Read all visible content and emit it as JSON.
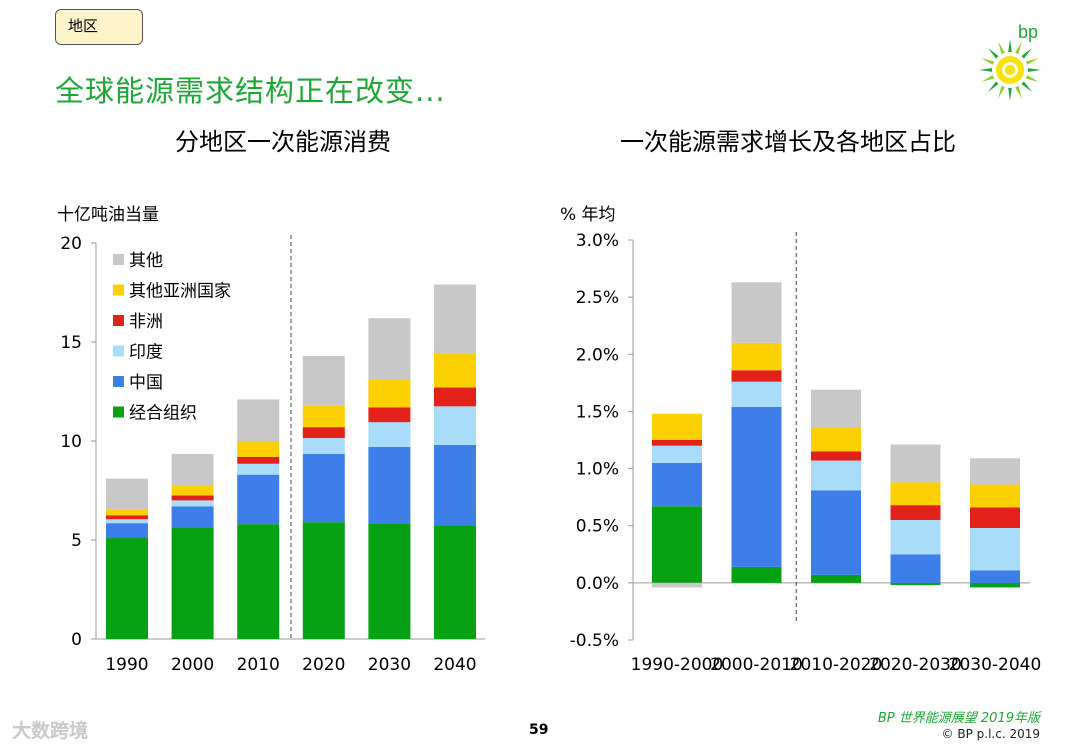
{
  "header": {
    "section_tag": "地区",
    "title": "全球能源需求结构正在改变..."
  },
  "logo": {
    "text": "bp",
    "icon": "helios-sun-icon",
    "accent": "#1fa637",
    "sun_color": "#f8e20a"
  },
  "colors": {
    "oecd": "#06a213",
    "china": "#3e7ee8",
    "india": "#a9dcf9",
    "africa": "#e3211b",
    "other_asia": "#fdd003",
    "other": "#c8c8c8"
  },
  "legend": {
    "items": [
      "其他",
      "其他亚洲国家",
      "非洲",
      "印度",
      "中国",
      "经合组织"
    ]
  },
  "chart_data": [
    {
      "type": "bar",
      "stacked": true,
      "title": "分地区一次能源消费",
      "ylabel": "十亿吨油当量",
      "ylim": [
        0,
        20
      ],
      "yticks": [
        "0",
        "5",
        "10",
        "15",
        "20"
      ],
      "ytick_values": [
        0,
        5,
        10,
        15,
        20
      ],
      "categories": [
        "1990",
        "2000",
        "2010",
        "2020",
        "2030",
        "2040"
      ],
      "divider_after": "2010",
      "series": [
        {
          "name": "经合组织",
          "values": [
            5.1,
            5.65,
            5.8,
            5.9,
            5.85,
            5.75
          ]
        },
        {
          "name": "中国",
          "values": [
            0.75,
            1.05,
            2.5,
            3.45,
            3.85,
            4.05
          ]
        },
        {
          "name": "印度",
          "values": [
            0.2,
            0.3,
            0.55,
            0.8,
            1.25,
            1.95
          ]
        },
        {
          "name": "非洲",
          "values": [
            0.2,
            0.25,
            0.35,
            0.55,
            0.75,
            0.95
          ]
        },
        {
          "name": "其他亚洲国家",
          "values": [
            0.3,
            0.5,
            0.8,
            1.1,
            1.4,
            1.7
          ]
        },
        {
          "name": "其他",
          "values": [
            1.55,
            1.6,
            2.1,
            2.5,
            3.1,
            3.5
          ]
        }
      ]
    },
    {
      "type": "bar",
      "stacked": true,
      "title": "一次能源需求增长及各地区占比",
      "ylabel": "% 年均",
      "ylim": [
        -0.5,
        3.0
      ],
      "yticks": [
        "-0.5%",
        "0.0%",
        "0.5%",
        "1.0%",
        "1.5%",
        "2.0%",
        "2.5%",
        "3.0%"
      ],
      "ytick_values": [
        -0.5,
        0.0,
        0.5,
        1.0,
        1.5,
        2.0,
        2.5,
        3.0
      ],
      "categories": [
        "1990-2000",
        "2000-2010",
        "2010-2020",
        "2020-2030",
        "2030-2040"
      ],
      "divider_after": "2000-2010",
      "series": [
        {
          "name": "经合组织",
          "values": [
            0.67,
            0.14,
            0.07,
            -0.02,
            -0.04
          ]
        },
        {
          "name": "中国",
          "values": [
            0.38,
            1.4,
            0.74,
            0.25,
            0.11
          ]
        },
        {
          "name": "印度",
          "values": [
            0.15,
            0.22,
            0.26,
            0.3,
            0.37
          ]
        },
        {
          "name": "非洲",
          "values": [
            0.05,
            0.1,
            0.08,
            0.13,
            0.18
          ]
        },
        {
          "name": "其他亚洲国家",
          "values": [
            0.23,
            0.24,
            0.21,
            0.2,
            0.2
          ]
        },
        {
          "name": "其他",
          "values": [
            -0.04,
            0.53,
            0.33,
            0.33,
            0.23
          ]
        }
      ]
    }
  ],
  "footer": {
    "report": "BP 世界能源展望 2019年版",
    "copyright": "© BP p.l.c. 2019",
    "page_number": "59",
    "watermark": "大数跨境"
  }
}
